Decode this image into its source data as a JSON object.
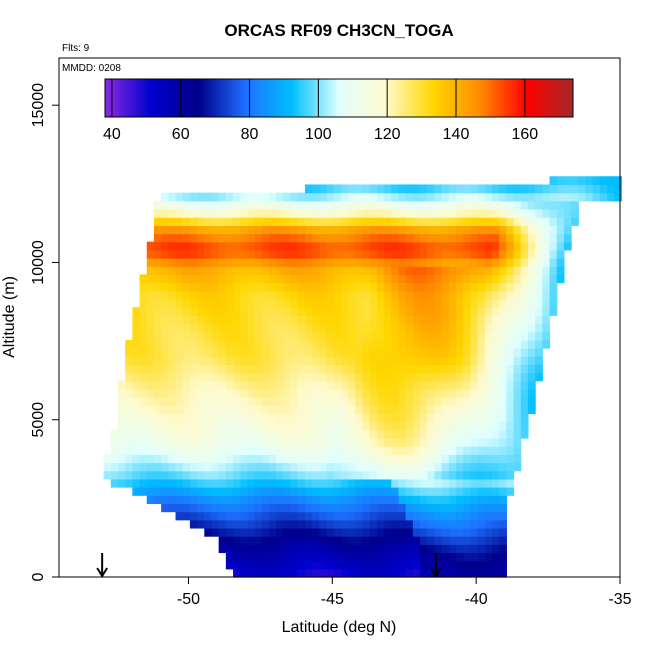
{
  "chart_data": {
    "type": "heatmap",
    "title": "ORCAS RF09 CH3CN_TOGA",
    "annotations": [
      "Flts: 9",
      "MMDD: 0208"
    ],
    "xlabel": "Latitude (deg N)",
    "ylabel": "Altitude (m)",
    "xlim": [
      -54.5,
      -35.0
    ],
    "ylim": [
      0,
      16500
    ],
    "x_ticks": [
      -50,
      -45,
      -40,
      -35
    ],
    "x_tick_labels": [
      "-50",
      "-45",
      "-40",
      "-35"
    ],
    "y_ticks": [
      0,
      5000,
      10000,
      15000
    ],
    "y_tick_labels": [
      "0",
      "5000",
      "10000",
      "15000"
    ],
    "colorbar": {
      "min": 38,
      "max": 174,
      "ticks": [
        40,
        60,
        80,
        100,
        120,
        140,
        160
      ],
      "tick_labels": [
        "40",
        "60",
        "80",
        "100",
        "120",
        "140",
        "160"
      ],
      "colors": [
        "#8a2be2",
        "#0000cd",
        "#00008b",
        "#1e6fff",
        "#00bfff",
        "#e0ffff",
        "#fffacd",
        "#ffd700",
        "#ff8c00",
        "#ff0000",
        "#a52a2a"
      ]
    },
    "markers": [
      {
        "type": "arrow-down",
        "x": -53.0,
        "y": 700
      },
      {
        "type": "arrow-down",
        "x": -41.4,
        "y": 700
      }
    ],
    "field_bounds": {
      "top": [
        [
          -51,
          12200
        ],
        [
          -46,
          12200
        ],
        [
          -45.8,
          12400
        ],
        [
          -37.6,
          12400
        ],
        [
          -37.5,
          12700
        ],
        [
          -35.0,
          12700
        ]
      ],
      "bottom_left": [
        [
          -53.0,
          3200
        ],
        [
          -51,
          2200
        ],
        [
          -49,
          1200
        ],
        [
          -48.5,
          0
        ]
      ],
      "bottom_right": [
        [
          -39.0,
          0
        ],
        [
          -39.0,
          2000
        ],
        [
          -38.4,
          4000
        ],
        [
          -37.4,
          8000
        ],
        [
          -36.4,
          12000
        ]
      ],
      "left": [
        [
          -53.0,
          3200
        ],
        [
          -52.5,
          5000
        ],
        [
          -52.2,
          7000
        ],
        [
          -51.5,
          10000
        ],
        [
          -51.0,
          12200
        ]
      ]
    },
    "layers": [
      {
        "alt": 0,
        "value": 50
      },
      {
        "alt": 800,
        "value": 58
      },
      {
        "alt": 1600,
        "value": 70
      },
      {
        "alt": 2400,
        "value": 82
      },
      {
        "alt": 3200,
        "value": 98
      },
      {
        "alt": 4200,
        "value": 112
      },
      {
        "alt": 5200,
        "value": 118
      },
      {
        "alt": 6000,
        "value": 122
      },
      {
        "alt": 7000,
        "value": 128
      },
      {
        "alt": 8000,
        "value": 130
      },
      {
        "alt": 9000,
        "value": 133
      },
      {
        "alt": 9800,
        "value": 140
      },
      {
        "alt": 10400,
        "value": 155
      },
      {
        "alt": 11000,
        "value": 145
      },
      {
        "alt": 11600,
        "value": 118
      },
      {
        "alt": 12200,
        "value": 100
      },
      {
        "alt": 12700,
        "value": 90
      }
    ],
    "east_edge_value": 95
  }
}
